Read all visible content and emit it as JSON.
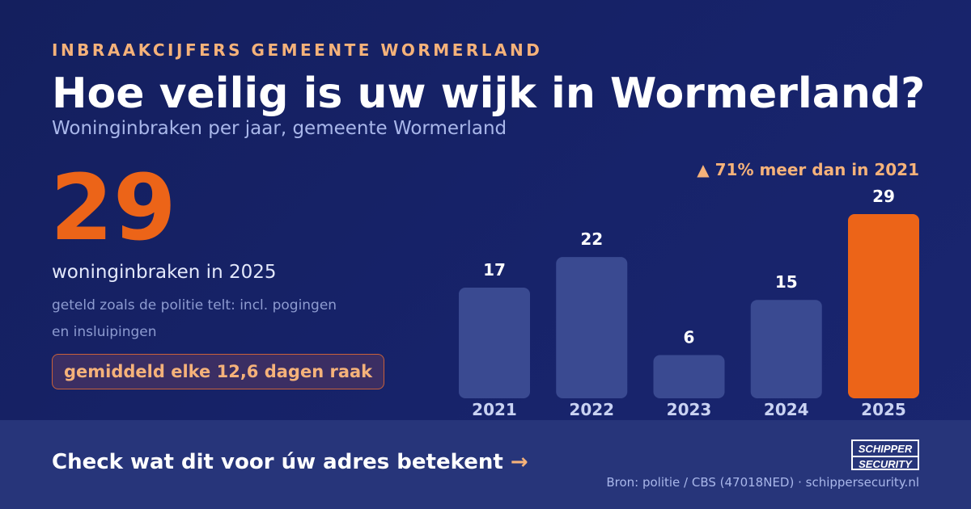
{
  "header": {
    "eyebrow": "INBRAAKCIJFERS GEMEENTE WORMERLAND",
    "title": "Hoe veilig is uw wijk in Wormerland?",
    "subtitle": "Woninginbraken per jaar, gemeente Wormerland"
  },
  "highlight": {
    "number": "29",
    "caption": "woninginbraken in 2025",
    "note": "geteld zoals de politie telt: incl. pogingen en insluipingen",
    "pill": "gemiddeld elke 12,6 dagen raak"
  },
  "chart_data": {
    "type": "bar",
    "categories": [
      "2021",
      "2022",
      "2023",
      "2024",
      "2025"
    ],
    "values": [
      17,
      22,
      6,
      15,
      29
    ],
    "annotation": "▲ 71% meer dan in 2021",
    "highlight_index": 4,
    "ylim": [
      0,
      29
    ],
    "grid": false,
    "colors": {
      "bar": "#3a4a91",
      "highlight": "#ec6418",
      "label": "#ffffff",
      "tick": "#c9d2f2"
    }
  },
  "footer": {
    "cta": "Check wat dit voor úw adres betekent",
    "cta_arrow": "→",
    "logo_line1": "SCHIPPER",
    "logo_line2": "SECURITY",
    "source": "Bron: politie / CBS (47018NED) · schippersecurity.nl"
  },
  "colors": {
    "background": "#17236a",
    "accent": "#ec6418",
    "accent_soft": "#f5b27a",
    "footer": "#27357a"
  }
}
